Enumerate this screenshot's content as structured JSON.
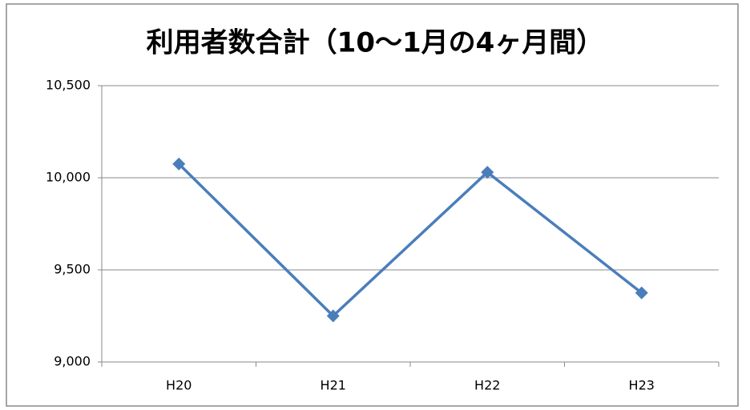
{
  "chart_data": {
    "type": "line",
    "title": "利用者数合計（10～1月の4ヶ月間）",
    "categories": [
      "H20",
      "H21",
      "H22",
      "H23"
    ],
    "series": [
      {
        "name": "利用者数合計",
        "color": "#4a7ebb",
        "values": [
          10075,
          9250,
          10030,
          9375
        ]
      }
    ],
    "ylim": [
      9000,
      10500
    ],
    "yticks": [
      {
        "value": 9000,
        "label": "9,000"
      },
      {
        "value": 9500,
        "label": "9,500"
      },
      {
        "value": 10000,
        "label": "10,000"
      },
      {
        "value": 10500,
        "label": "10,500"
      }
    ],
    "grid": true,
    "legend": false
  }
}
